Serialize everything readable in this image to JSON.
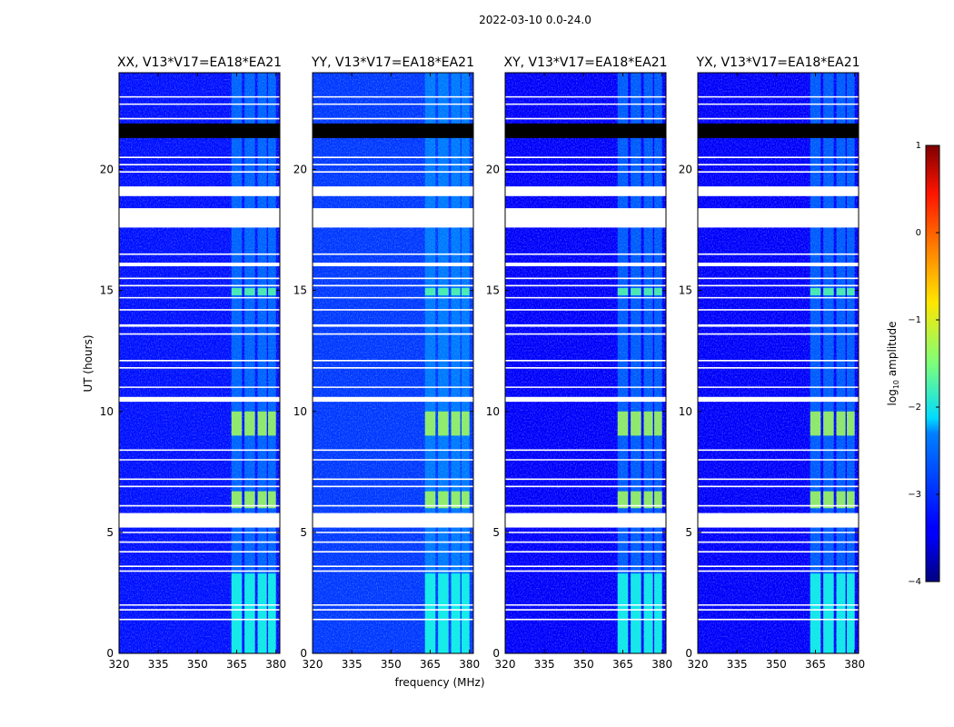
{
  "suptitle": "2022-03-10 0.0-24.0",
  "chart_data": {
    "type": "heatmap",
    "xlabel": "frequency (MHz)",
    "ylabel": "UT (hours)",
    "xlim": [
      320,
      381.5
    ],
    "ylim": [
      0,
      24
    ],
    "xticks": [
      320,
      335,
      350,
      365,
      380
    ],
    "yticks": [
      0,
      5,
      10,
      15,
      20
    ],
    "colorbar": {
      "label_prefix": "log",
      "label_sub": "10",
      "label_suffix": " amplitude",
      "range": [
        -4,
        1
      ],
      "ticks": [
        1,
        0,
        -1,
        -2,
        -3,
        -4
      ],
      "colormap": "jet"
    },
    "rfi_bands_mhz": [
      [
        363,
        367
      ],
      [
        368,
        372
      ],
      [
        373,
        376.5
      ],
      [
        377,
        380
      ]
    ],
    "bright_intervals_ut": [
      {
        "from": 9.0,
        "to": 10.0,
        "level": -1.3
      },
      {
        "from": 6.0,
        "to": 6.7,
        "level": -1.3
      },
      {
        "from": 14.8,
        "to": 15.1,
        "level": -1.7
      },
      {
        "from": 0.0,
        "to": 3.3,
        "level": -2.0
      }
    ],
    "flagged_intervals_ut": [
      [
        17.6,
        18.4
      ],
      [
        18.9,
        19.3
      ],
      [
        5.2,
        5.8
      ],
      [
        13.5,
        13.6
      ],
      [
        10.4,
        10.6
      ],
      [
        16.0,
        16.15
      ]
    ],
    "saturated_intervals_ut": [
      [
        21.3,
        21.9
      ]
    ],
    "panels": [
      {
        "title": "XX, V13*V17=EA18*EA21",
        "background_level": -3.3
      },
      {
        "title": "YY, V13*V17=EA18*EA21",
        "background_level": -3.1
      },
      {
        "title": "XY, V13*V17=EA18*EA21",
        "background_level": -3.4
      },
      {
        "title": "YX, V13*V17=EA18*EA21",
        "background_level": -3.4
      }
    ]
  }
}
